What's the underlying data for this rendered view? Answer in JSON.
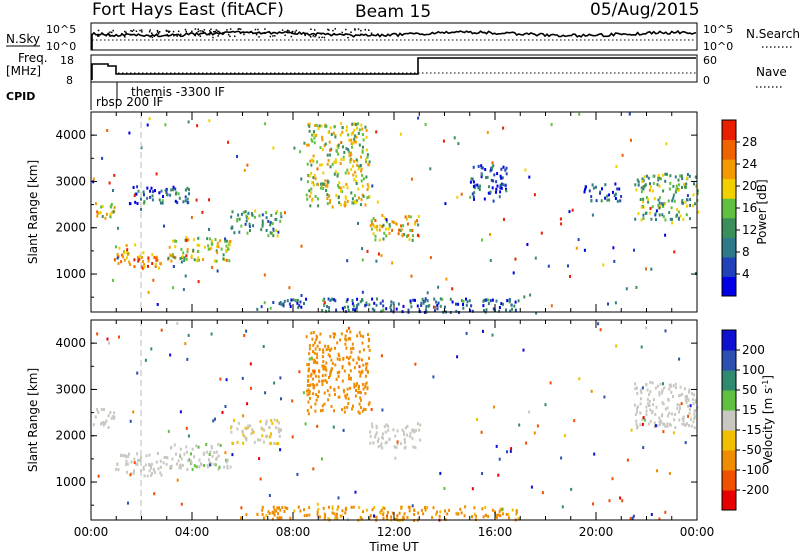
{
  "header": {
    "station": "Fort Hays East (fitACF)",
    "beam": "Beam 15",
    "date": "05/Aug/2015"
  },
  "top_panels": {
    "nsky_label": "N.Sky",
    "nsky_tick_top": "10^5",
    "nsky_tick_bottom": "10^0",
    "nsearch_label": "N.Search",
    "nsearch_tick_top": "10^5",
    "nsearch_tick_bottom": "10^0",
    "freq_label": "Freq.",
    "freq_unit": "[MHz]",
    "freq_tick_top": "18",
    "freq_tick_bottom": "8",
    "nave_label": "Nave",
    "nave_tick_top": "60",
    "nave_tick_bottom": "0",
    "cpid_label": "CPID",
    "cpid_entries": [
      {
        "text": "rbsp 200 IF",
        "hour": 0.1
      },
      {
        "text": "themis -3300 IF",
        "hour": 1.1
      }
    ]
  },
  "colors": {
    "power_scale": [
      "#0000e6",
      "#2142b8",
      "#2f7a8a",
      "#3a8f5a",
      "#60c040",
      "#f2d000",
      "#f29a00",
      "#f06400",
      "#e82000"
    ],
    "velocity_scale": [
      "#e80000",
      "#f05000",
      "#f08c00",
      "#f0c000",
      "#c8c8c0",
      "#60c040",
      "#2f8a70",
      "#2c50b0",
      "#1010d0"
    ]
  },
  "chart_data": [
    {
      "type": "heatmap",
      "name": "power",
      "ylabel": "Slant Range [km]",
      "yticks": [
        "1000",
        "2000",
        "3000",
        "4000"
      ],
      "ylim": [
        180,
        4500
      ],
      "xlim": [
        0,
        24
      ],
      "colorbar_label": "Power [dB]",
      "colorbar_ticks": [
        "4",
        "8",
        "12",
        "16",
        "20",
        "24",
        "28"
      ],
      "colorbar_range": [
        0,
        32
      ],
      "regions": [
        {
          "t0": 0.0,
          "t1": 0.9,
          "r0": 2200,
          "r1": 2600,
          "value": 20
        },
        {
          "t0": 0.9,
          "t1": 1.5,
          "r0": 1200,
          "r1": 1650,
          "value": 22
        },
        {
          "t0": 1.5,
          "t1": 3.0,
          "r0": 1150,
          "r1": 1500,
          "value": 24
        },
        {
          "t0": 3.0,
          "t1": 5.5,
          "r0": 1300,
          "r1": 1850,
          "value": 18
        },
        {
          "t0": 5.5,
          "t1": 7.5,
          "r0": 1850,
          "r1": 2400,
          "value": 12
        },
        {
          "t0": 1.5,
          "t1": 4.0,
          "r0": 2550,
          "r1": 2950,
          "value": 8
        },
        {
          "t0": 11.0,
          "t1": 13.0,
          "r0": 1750,
          "r1": 2300,
          "value": 20
        },
        {
          "t0": 15.0,
          "t1": 16.5,
          "r0": 2600,
          "r1": 3400,
          "value": 6
        },
        {
          "t0": 19.5,
          "t1": 21.0,
          "r0": 2600,
          "r1": 3000,
          "value": 6
        },
        {
          "t0": 21.5,
          "t1": 24.0,
          "r0": 2200,
          "r1": 3200,
          "value": 14
        },
        {
          "t0": 8.5,
          "t1": 11.0,
          "r0": 2500,
          "r1": 4300,
          "value": 18
        },
        {
          "t0": 6.5,
          "t1": 17.0,
          "r0": 200,
          "r1": 500,
          "value": 8
        }
      ]
    },
    {
      "type": "heatmap",
      "name": "velocity",
      "ylabel": "Slant Range [km]",
      "yticks": [
        "1000",
        "2000",
        "3000",
        "4000"
      ],
      "ylim": [
        180,
        4500
      ],
      "xlim": [
        0,
        24
      ],
      "xlabel": "Time UT",
      "xticks": [
        "00:00",
        "04:00",
        "08:00",
        "12:00",
        "16:00",
        "20:00",
        "00:00"
      ],
      "colorbar_label": "Velocity [m s^-1]",
      "colorbar_ticks": [
        "-200",
        "-100",
        "-50",
        "-15",
        "15",
        "50",
        "100",
        "200"
      ],
      "colorbar_range": [
        -250,
        250
      ],
      "regions": [
        {
          "t0": 0.0,
          "t1": 0.9,
          "r0": 2200,
          "r1": 2600,
          "value": 0
        },
        {
          "t0": 0.9,
          "t1": 3.0,
          "r0": 1150,
          "r1": 1650,
          "value": 0
        },
        {
          "t0": 3.0,
          "t1": 5.5,
          "r0": 1300,
          "r1": 1850,
          "value": 5
        },
        {
          "t0": 5.5,
          "t1": 7.5,
          "r0": 1850,
          "r1": 2400,
          "value": -10
        },
        {
          "t0": 11.0,
          "t1": 13.0,
          "r0": 1750,
          "r1": 2300,
          "value": 0
        },
        {
          "t0": 21.5,
          "t1": 24.0,
          "r0": 2200,
          "r1": 3200,
          "value": 0
        },
        {
          "t0": 8.5,
          "t1": 11.0,
          "r0": 2500,
          "r1": 4300,
          "value": -80
        },
        {
          "t0": 6.5,
          "t1": 17.0,
          "r0": 200,
          "r1": 500,
          "value": -60
        }
      ]
    }
  ]
}
